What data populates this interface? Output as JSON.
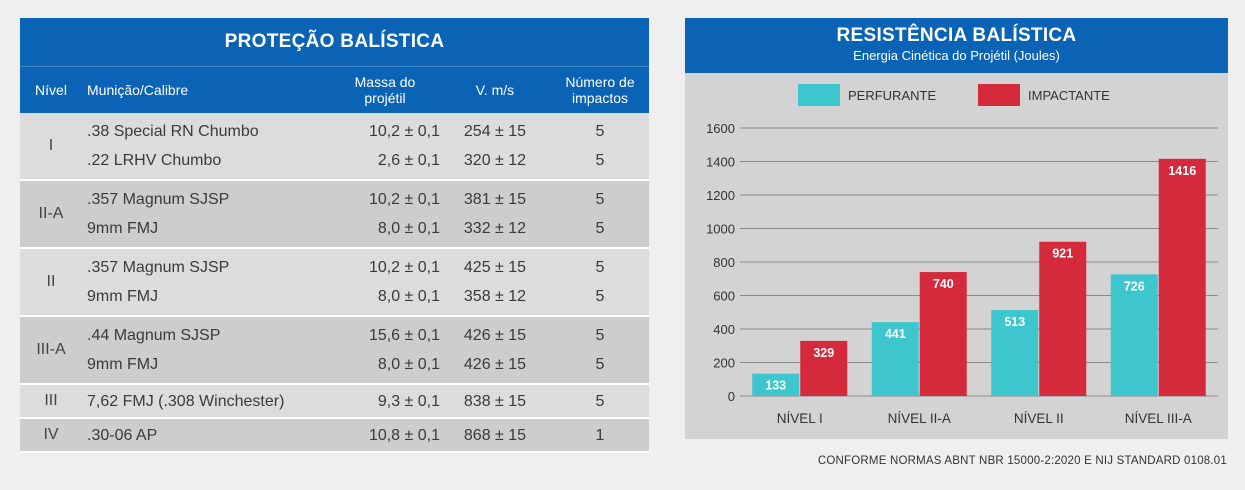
{
  "table": {
    "title": "PROTEÇÃO BALÍSTICA",
    "headers": {
      "nivel": "Nível",
      "municao": "Munição/Calibre",
      "massa": "Massa do projétil",
      "velocidade": "V. m/s",
      "impactos": "Número de impactos"
    },
    "groups": [
      {
        "nivel": "I",
        "rows": [
          {
            "municao": ".38 Special RN Chumbo",
            "massa": "10,2 ± 0,1",
            "velocidade": "254 ± 15",
            "impactos": "5"
          },
          {
            "municao": ".22 LRHV Chumbo",
            "massa": "2,6 ± 0,1",
            "velocidade": "320 ± 12",
            "impactos": "5"
          }
        ]
      },
      {
        "nivel": "II-A",
        "rows": [
          {
            "municao": ".357 Magnum SJSP",
            "massa": "10,2 ± 0,1",
            "velocidade": "381 ± 15",
            "impactos": "5"
          },
          {
            "municao": "9mm FMJ",
            "massa": "8,0 ± 0,1",
            "velocidade": "332 ± 12",
            "impactos": "5"
          }
        ]
      },
      {
        "nivel": "II",
        "rows": [
          {
            "municao": ".357 Magnum SJSP",
            "massa": "10,2 ± 0,1",
            "velocidade": "425 ± 15",
            "impactos": "5"
          },
          {
            "municao": "9mm FMJ",
            "massa": "8,0 ± 0,1",
            "velocidade": "358 ± 12",
            "impactos": "5"
          }
        ]
      },
      {
        "nivel": "III-A",
        "rows": [
          {
            "municao": ".44 Magnum SJSP",
            "massa": "15,6 ± 0,1",
            "velocidade": "426 ± 15",
            "impactos": "5"
          },
          {
            "municao": "9mm FMJ",
            "massa": "8,0 ± 0,1",
            "velocidade": "426 ± 15",
            "impactos": "5"
          }
        ]
      },
      {
        "nivel": "III",
        "rows": [
          {
            "municao": "7,62 FMJ (.308 Winchester)",
            "massa": "9,3 ± 0,1",
            "velocidade": "838 ± 15",
            "impactos": "5"
          }
        ]
      },
      {
        "nivel": "IV",
        "rows": [
          {
            "municao": ".30-06 AP",
            "massa": "10,8 ± 0,1",
            "velocidade": "868 ± 15",
            "impactos": "1"
          }
        ]
      }
    ]
  },
  "chart_data": {
    "type": "bar",
    "title": "RESISTÊNCIA BALÍSTICA",
    "subtitle": "Energia Cinética do Projétil (Joules)",
    "categories": [
      "NÍVEL I",
      "NÍVEL II-A",
      "NÍVEL II",
      "NÍVEL III-A"
    ],
    "series": [
      {
        "name": "PERFURANTE",
        "color": "#3ec6cf",
        "values": [
          133,
          441,
          513,
          726
        ]
      },
      {
        "name": "IMPACTANTE",
        "color": "#d42a3c",
        "values": [
          329,
          740,
          921,
          1416
        ]
      }
    ],
    "ylim": [
      0,
      1600
    ],
    "yticks": [
      0,
      200,
      400,
      600,
      800,
      1000,
      1200,
      1400,
      1600
    ],
    "grid": true,
    "legend_position": "top"
  },
  "colors": {
    "header_blue": "#0b63b5",
    "row_light": "#dcdcdc",
    "row_dark": "#cdcdcd",
    "chart_bg": "#d3d3d3"
  },
  "footnote": "CONFORME NORMAS ABNT NBR 15000-2:2020 E NIJ STANDARD 0108.01"
}
